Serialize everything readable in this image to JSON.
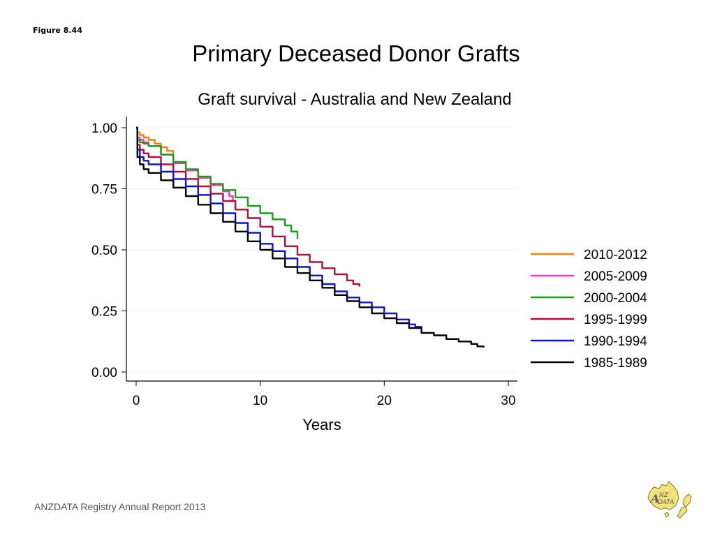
{
  "figure_label": "Figure 8.44",
  "slide_title": "Primary Deceased Donor Grafts",
  "footer": "ANZDATA Registry Annual Report 2013",
  "logo": {
    "text": "ANZDATA"
  },
  "chart_data": {
    "type": "line",
    "title": "Graft survival - Australia and New Zealand",
    "xlabel": "Years",
    "ylabel": "",
    "xlim": [
      0,
      30
    ],
    "ylim": [
      0,
      1
    ],
    "xticks": [
      0,
      10,
      20,
      30
    ],
    "yticks": [
      0,
      0.25,
      0.5,
      0.75,
      1.0
    ],
    "xtick_labels": [
      "0",
      "10",
      "20",
      "30"
    ],
    "ytick_labels": [
      "0.00",
      "0.25",
      "0.50",
      "0.75",
      "1.00"
    ],
    "grid": true,
    "legend_position": "right",
    "series": [
      {
        "name": "2010-2012",
        "color": "#ff8000",
        "x": [
          0,
          0.1,
          0.3,
          0.6,
          1,
          1.5,
          2,
          2.5,
          3
        ],
        "y": [
          1.0,
          0.98,
          0.97,
          0.96,
          0.95,
          0.935,
          0.92,
          0.905,
          0.895
        ]
      },
      {
        "name": "2005-2009",
        "color": "#ff33cc",
        "x": [
          0,
          0.1,
          0.3,
          0.6,
          1,
          2,
          3,
          4,
          5,
          6,
          7,
          7.5,
          7.8,
          8
        ],
        "y": [
          1.0,
          0.96,
          0.95,
          0.94,
          0.925,
          0.89,
          0.855,
          0.825,
          0.795,
          0.765,
          0.74,
          0.72,
          0.7,
          0.67
        ]
      },
      {
        "name": "2000-2004",
        "color": "#1a9e1a",
        "x": [
          0,
          0.1,
          0.3,
          0.6,
          1,
          2,
          3,
          4,
          5,
          6,
          7,
          8,
          9,
          10,
          11,
          12,
          12.5,
          13
        ],
        "y": [
          1.0,
          0.95,
          0.94,
          0.935,
          0.925,
          0.89,
          0.86,
          0.83,
          0.8,
          0.77,
          0.745,
          0.715,
          0.68,
          0.65,
          0.625,
          0.6,
          0.575,
          0.545
        ]
      },
      {
        "name": "1995-1999",
        "color": "#b0103a",
        "x": [
          0,
          0.1,
          0.3,
          0.6,
          1,
          2,
          3,
          4,
          5,
          6,
          7,
          8,
          9,
          10,
          11,
          12,
          13,
          14,
          15,
          16,
          17,
          17.5,
          18
        ],
        "y": [
          1.0,
          0.93,
          0.91,
          0.895,
          0.88,
          0.85,
          0.82,
          0.79,
          0.76,
          0.73,
          0.7,
          0.665,
          0.63,
          0.595,
          0.555,
          0.515,
          0.48,
          0.45,
          0.425,
          0.4,
          0.375,
          0.36,
          0.35
        ]
      },
      {
        "name": "1990-1994",
        "color": "#0a14d6",
        "x": [
          0,
          0.1,
          0.3,
          0.6,
          1,
          2,
          3,
          4,
          5,
          6,
          7,
          8,
          9,
          10,
          11,
          12,
          13,
          14,
          15,
          16,
          17,
          18,
          19,
          20,
          21,
          22,
          22.5,
          23
        ],
        "y": [
          1.0,
          0.91,
          0.88,
          0.865,
          0.85,
          0.82,
          0.79,
          0.76,
          0.725,
          0.69,
          0.65,
          0.61,
          0.57,
          0.525,
          0.495,
          0.465,
          0.43,
          0.395,
          0.36,
          0.33,
          0.305,
          0.285,
          0.265,
          0.24,
          0.215,
          0.195,
          0.185,
          0.18
        ]
      },
      {
        "name": "1985-1989",
        "color": "#000000",
        "x": [
          0,
          0.1,
          0.3,
          0.6,
          1,
          2,
          3,
          4,
          5,
          6,
          7,
          8,
          9,
          10,
          11,
          12,
          13,
          14,
          15,
          16,
          17,
          18,
          19,
          20,
          21,
          22,
          23,
          24,
          25,
          26,
          27,
          27.5,
          28
        ],
        "y": [
          1.0,
          0.88,
          0.85,
          0.83,
          0.815,
          0.785,
          0.755,
          0.72,
          0.685,
          0.65,
          0.615,
          0.575,
          0.535,
          0.5,
          0.465,
          0.43,
          0.405,
          0.375,
          0.345,
          0.315,
          0.29,
          0.265,
          0.24,
          0.22,
          0.2,
          0.18,
          0.16,
          0.15,
          0.135,
          0.125,
          0.115,
          0.105,
          0.1
        ]
      }
    ]
  }
}
